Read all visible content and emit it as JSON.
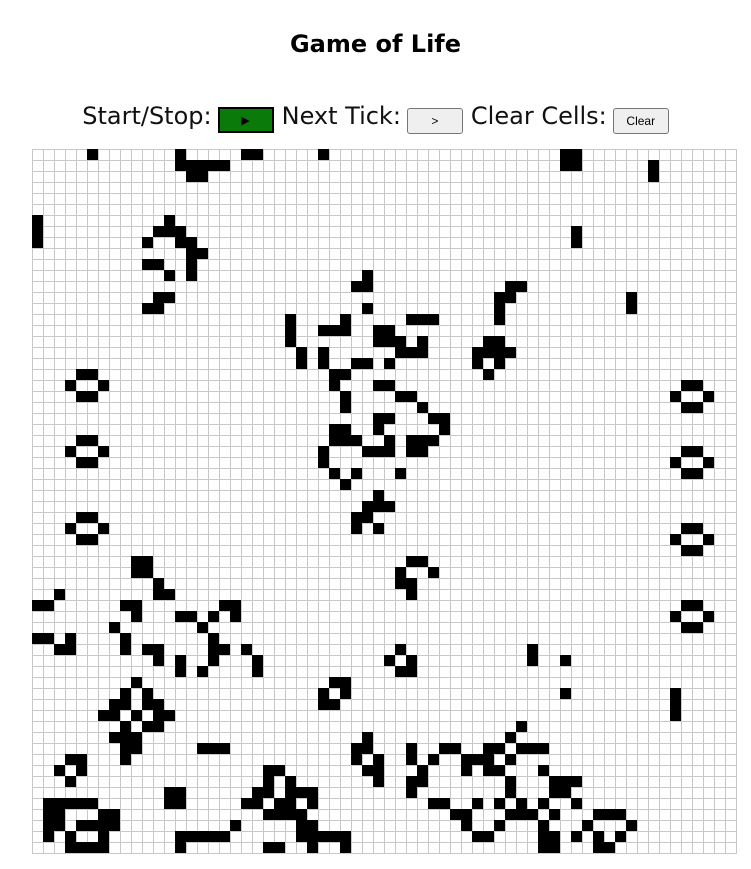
{
  "title": "Game of Life",
  "controls": {
    "start_stop_label": "Start/Stop:",
    "play_glyph": "▶",
    "next_tick_label": "Next Tick:",
    "next_glyph": ">",
    "clear_label": "Clear Cells:",
    "clear_button": "Clear",
    "play_color": "#0a7a0a"
  },
  "board": {
    "columns": 64,
    "rows": 64,
    "live_color": "#000000",
    "grid_color": "#c8c8c8",
    "live_cells": [
      [
        5,
        0
      ],
      [
        13,
        0
      ],
      [
        19,
        0
      ],
      [
        20,
        0
      ],
      [
        26,
        0
      ],
      [
        48,
        0
      ],
      [
        49,
        0
      ],
      [
        13,
        1
      ],
      [
        14,
        1
      ],
      [
        15,
        1
      ],
      [
        16,
        1
      ],
      [
        17,
        1
      ],
      [
        48,
        1
      ],
      [
        49,
        1
      ],
      [
        56,
        1
      ],
      [
        14,
        2
      ],
      [
        15,
        2
      ],
      [
        56,
        2
      ],
      [
        0,
        6
      ],
      [
        12,
        6
      ],
      [
        0,
        7
      ],
      [
        11,
        7
      ],
      [
        12,
        7
      ],
      [
        13,
        7
      ],
      [
        49,
        7
      ],
      [
        0,
        8
      ],
      [
        10,
        8
      ],
      [
        13,
        8
      ],
      [
        14,
        8
      ],
      [
        49,
        8
      ],
      [
        14,
        9
      ],
      [
        15,
        9
      ],
      [
        10,
        10
      ],
      [
        11,
        10
      ],
      [
        14,
        10
      ],
      [
        12,
        11
      ],
      [
        14,
        11
      ],
      [
        30,
        11
      ],
      [
        29,
        12
      ],
      [
        30,
        12
      ],
      [
        43,
        12
      ],
      [
        44,
        12
      ],
      [
        11,
        13
      ],
      [
        12,
        13
      ],
      [
        42,
        13
      ],
      [
        43,
        13
      ],
      [
        54,
        13
      ],
      [
        10,
        14
      ],
      [
        11,
        14
      ],
      [
        30,
        14
      ],
      [
        42,
        14
      ],
      [
        54,
        14
      ],
      [
        23,
        15
      ],
      [
        28,
        15
      ],
      [
        34,
        15
      ],
      [
        35,
        15
      ],
      [
        36,
        15
      ],
      [
        42,
        15
      ],
      [
        23,
        16
      ],
      [
        26,
        16
      ],
      [
        27,
        16
      ],
      [
        28,
        16
      ],
      [
        31,
        16
      ],
      [
        32,
        16
      ],
      [
        23,
        17
      ],
      [
        31,
        17
      ],
      [
        32,
        17
      ],
      [
        33,
        17
      ],
      [
        35,
        17
      ],
      [
        41,
        17
      ],
      [
        42,
        17
      ],
      [
        24,
        18
      ],
      [
        26,
        18
      ],
      [
        33,
        18
      ],
      [
        34,
        18
      ],
      [
        35,
        18
      ],
      [
        40,
        18
      ],
      [
        41,
        18
      ],
      [
        42,
        18
      ],
      [
        43,
        18
      ],
      [
        24,
        19
      ],
      [
        26,
        19
      ],
      [
        29,
        19
      ],
      [
        30,
        19
      ],
      [
        32,
        19
      ],
      [
        40,
        19
      ],
      [
        42,
        19
      ],
      [
        4,
        20
      ],
      [
        5,
        20
      ],
      [
        27,
        20
      ],
      [
        28,
        20
      ],
      [
        41,
        20
      ],
      [
        3,
        21
      ],
      [
        6,
        21
      ],
      [
        27,
        21
      ],
      [
        31,
        21
      ],
      [
        32,
        21
      ],
      [
        59,
        21
      ],
      [
        60,
        21
      ],
      [
        4,
        22
      ],
      [
        5,
        22
      ],
      [
        28,
        22
      ],
      [
        33,
        22
      ],
      [
        34,
        22
      ],
      [
        58,
        22
      ],
      [
        61,
        22
      ],
      [
        28,
        23
      ],
      [
        35,
        23
      ],
      [
        59,
        23
      ],
      [
        60,
        23
      ],
      [
        31,
        24
      ],
      [
        32,
        24
      ],
      [
        36,
        24
      ],
      [
        37,
        24
      ],
      [
        27,
        25
      ],
      [
        28,
        25
      ],
      [
        31,
        25
      ],
      [
        37,
        25
      ],
      [
        27,
        26
      ],
      [
        28,
        26
      ],
      [
        29,
        26
      ],
      [
        32,
        26
      ],
      [
        34,
        26
      ],
      [
        35,
        26
      ],
      [
        36,
        26
      ],
      [
        26,
        27
      ],
      [
        30,
        27
      ],
      [
        31,
        27
      ],
      [
        32,
        27
      ],
      [
        34,
        27
      ],
      [
        35,
        27
      ],
      [
        4,
        26
      ],
      [
        5,
        26
      ],
      [
        3,
        27
      ],
      [
        6,
        27
      ],
      [
        4,
        28
      ],
      [
        5,
        28
      ],
      [
        26,
        28
      ],
      [
        59,
        27
      ],
      [
        60,
        27
      ],
      [
        27,
        29
      ],
      [
        29,
        29
      ],
      [
        33,
        29
      ],
      [
        58,
        28
      ],
      [
        61,
        28
      ],
      [
        28,
        30
      ],
      [
        59,
        29
      ],
      [
        60,
        29
      ],
      [
        31,
        31
      ],
      [
        30,
        32
      ],
      [
        31,
        32
      ],
      [
        32,
        32
      ],
      [
        29,
        33
      ],
      [
        30,
        33
      ],
      [
        4,
        33
      ],
      [
        5,
        33
      ],
      [
        29,
        34
      ],
      [
        31,
        34
      ],
      [
        3,
        34
      ],
      [
        6,
        34
      ],
      [
        59,
        34
      ],
      [
        60,
        34
      ],
      [
        4,
        35
      ],
      [
        5,
        35
      ],
      [
        58,
        35
      ],
      [
        61,
        35
      ],
      [
        59,
        36
      ],
      [
        60,
        36
      ],
      [
        9,
        37
      ],
      [
        10,
        37
      ],
      [
        34,
        37
      ],
      [
        35,
        37
      ],
      [
        9,
        38
      ],
      [
        10,
        38
      ],
      [
        33,
        38
      ],
      [
        36,
        38
      ],
      [
        11,
        39
      ],
      [
        33,
        39
      ],
      [
        34,
        39
      ],
      [
        2,
        40
      ],
      [
        11,
        40
      ],
      [
        12,
        40
      ],
      [
        34,
        40
      ],
      [
        0,
        41
      ],
      [
        1,
        41
      ],
      [
        8,
        41
      ],
      [
        9,
        41
      ],
      [
        17,
        41
      ],
      [
        18,
        41
      ],
      [
        59,
        41
      ],
      [
        60,
        41
      ],
      [
        9,
        42
      ],
      [
        13,
        42
      ],
      [
        14,
        42
      ],
      [
        16,
        42
      ],
      [
        18,
        42
      ],
      [
        58,
        42
      ],
      [
        61,
        42
      ],
      [
        7,
        43
      ],
      [
        15,
        43
      ],
      [
        59,
        43
      ],
      [
        60,
        43
      ],
      [
        0,
        44
      ],
      [
        1,
        44
      ],
      [
        3,
        44
      ],
      [
        8,
        44
      ],
      [
        16,
        44
      ],
      [
        2,
        45
      ],
      [
        3,
        45
      ],
      [
        8,
        45
      ],
      [
        10,
        45
      ],
      [
        11,
        45
      ],
      [
        16,
        45
      ],
      [
        17,
        45
      ],
      [
        19,
        45
      ],
      [
        33,
        45
      ],
      [
        45,
        45
      ],
      [
        11,
        46
      ],
      [
        13,
        46
      ],
      [
        16,
        46
      ],
      [
        20,
        46
      ],
      [
        32,
        46
      ],
      [
        34,
        46
      ],
      [
        45,
        46
      ],
      [
        48,
        46
      ],
      [
        13,
        47
      ],
      [
        15,
        47
      ],
      [
        20,
        47
      ],
      [
        33,
        47
      ],
      [
        34,
        47
      ],
      [
        9,
        48
      ],
      [
        27,
        48
      ],
      [
        28,
        48
      ],
      [
        8,
        49
      ],
      [
        10,
        49
      ],
      [
        26,
        49
      ],
      [
        28,
        49
      ],
      [
        48,
        49
      ],
      [
        58,
        49
      ],
      [
        7,
        50
      ],
      [
        8,
        50
      ],
      [
        10,
        50
      ],
      [
        11,
        50
      ],
      [
        26,
        50
      ],
      [
        27,
        50
      ],
      [
        58,
        50
      ],
      [
        6,
        51
      ],
      [
        7,
        51
      ],
      [
        9,
        51
      ],
      [
        11,
        51
      ],
      [
        12,
        51
      ],
      [
        58,
        51
      ],
      [
        8,
        52
      ],
      [
        10,
        52
      ],
      [
        11,
        52
      ],
      [
        44,
        52
      ],
      [
        7,
        53
      ],
      [
        8,
        53
      ],
      [
        9,
        53
      ],
      [
        30,
        53
      ],
      [
        43,
        53
      ],
      [
        8,
        54
      ],
      [
        9,
        54
      ],
      [
        15,
        54
      ],
      [
        16,
        54
      ],
      [
        17,
        54
      ],
      [
        29,
        54
      ],
      [
        30,
        54
      ],
      [
        34,
        54
      ],
      [
        37,
        54
      ],
      [
        38,
        54
      ],
      [
        41,
        54
      ],
      [
        42,
        54
      ],
      [
        44,
        54
      ],
      [
        45,
        54
      ],
      [
        46,
        54
      ],
      [
        3,
        55
      ],
      [
        4,
        55
      ],
      [
        8,
        55
      ],
      [
        29,
        55
      ],
      [
        31,
        55
      ],
      [
        34,
        55
      ],
      [
        36,
        55
      ],
      [
        39,
        55
      ],
      [
        40,
        55
      ],
      [
        41,
        55
      ],
      [
        43,
        55
      ],
      [
        2,
        56
      ],
      [
        4,
        56
      ],
      [
        21,
        56
      ],
      [
        22,
        56
      ],
      [
        30,
        56
      ],
      [
        31,
        56
      ],
      [
        35,
        56
      ],
      [
        39,
        56
      ],
      [
        41,
        56
      ],
      [
        42,
        56
      ],
      [
        46,
        56
      ],
      [
        3,
        57
      ],
      [
        21,
        57
      ],
      [
        23,
        57
      ],
      [
        31,
        57
      ],
      [
        34,
        57
      ],
      [
        35,
        57
      ],
      [
        43,
        57
      ],
      [
        47,
        57
      ],
      [
        48,
        57
      ],
      [
        49,
        57
      ],
      [
        12,
        58
      ],
      [
        13,
        58
      ],
      [
        20,
        58
      ],
      [
        21,
        58
      ],
      [
        23,
        58
      ],
      [
        24,
        58
      ],
      [
        25,
        58
      ],
      [
        34,
        58
      ],
      [
        43,
        58
      ],
      [
        47,
        58
      ],
      [
        48,
        58
      ],
      [
        1,
        59
      ],
      [
        2,
        59
      ],
      [
        3,
        59
      ],
      [
        4,
        59
      ],
      [
        5,
        59
      ],
      [
        12,
        59
      ],
      [
        13,
        59
      ],
      [
        19,
        59
      ],
      [
        20,
        59
      ],
      [
        22,
        59
      ],
      [
        23,
        59
      ],
      [
        25,
        59
      ],
      [
        36,
        59
      ],
      [
        37,
        59
      ],
      [
        40,
        59
      ],
      [
        42,
        59
      ],
      [
        44,
        59
      ],
      [
        46,
        59
      ],
      [
        49,
        59
      ],
      [
        1,
        60
      ],
      [
        2,
        60
      ],
      [
        6,
        60
      ],
      [
        7,
        60
      ],
      [
        21,
        60
      ],
      [
        22,
        60
      ],
      [
        23,
        60
      ],
      [
        24,
        60
      ],
      [
        38,
        60
      ],
      [
        39,
        60
      ],
      [
        43,
        60
      ],
      [
        44,
        60
      ],
      [
        45,
        60
      ],
      [
        47,
        60
      ],
      [
        51,
        60
      ],
      [
        52,
        60
      ],
      [
        53,
        60
      ],
      [
        1,
        61
      ],
      [
        2,
        61
      ],
      [
        4,
        61
      ],
      [
        5,
        61
      ],
      [
        6,
        61
      ],
      [
        7,
        61
      ],
      [
        18,
        61
      ],
      [
        24,
        61
      ],
      [
        25,
        61
      ],
      [
        39,
        61
      ],
      [
        42,
        61
      ],
      [
        46,
        61
      ],
      [
        50,
        61
      ],
      [
        54,
        61
      ],
      [
        1,
        62
      ],
      [
        3,
        62
      ],
      [
        6,
        62
      ],
      [
        13,
        62
      ],
      [
        14,
        62
      ],
      [
        15,
        62
      ],
      [
        16,
        62
      ],
      [
        17,
        62
      ],
      [
        24,
        62
      ],
      [
        25,
        62
      ],
      [
        26,
        62
      ],
      [
        27,
        62
      ],
      [
        28,
        62
      ],
      [
        40,
        62
      ],
      [
        41,
        62
      ],
      [
        46,
        62
      ],
      [
        47,
        62
      ],
      [
        49,
        62
      ],
      [
        51,
        62
      ],
      [
        53,
        62
      ],
      [
        3,
        63
      ],
      [
        4,
        63
      ],
      [
        5,
        63
      ],
      [
        6,
        63
      ],
      [
        13,
        63
      ],
      [
        21,
        63
      ],
      [
        22,
        63
      ],
      [
        25,
        63
      ],
      [
        28,
        63
      ],
      [
        46,
        63
      ],
      [
        47,
        63
      ],
      [
        51,
        63
      ],
      [
        52,
        63
      ]
    ]
  }
}
